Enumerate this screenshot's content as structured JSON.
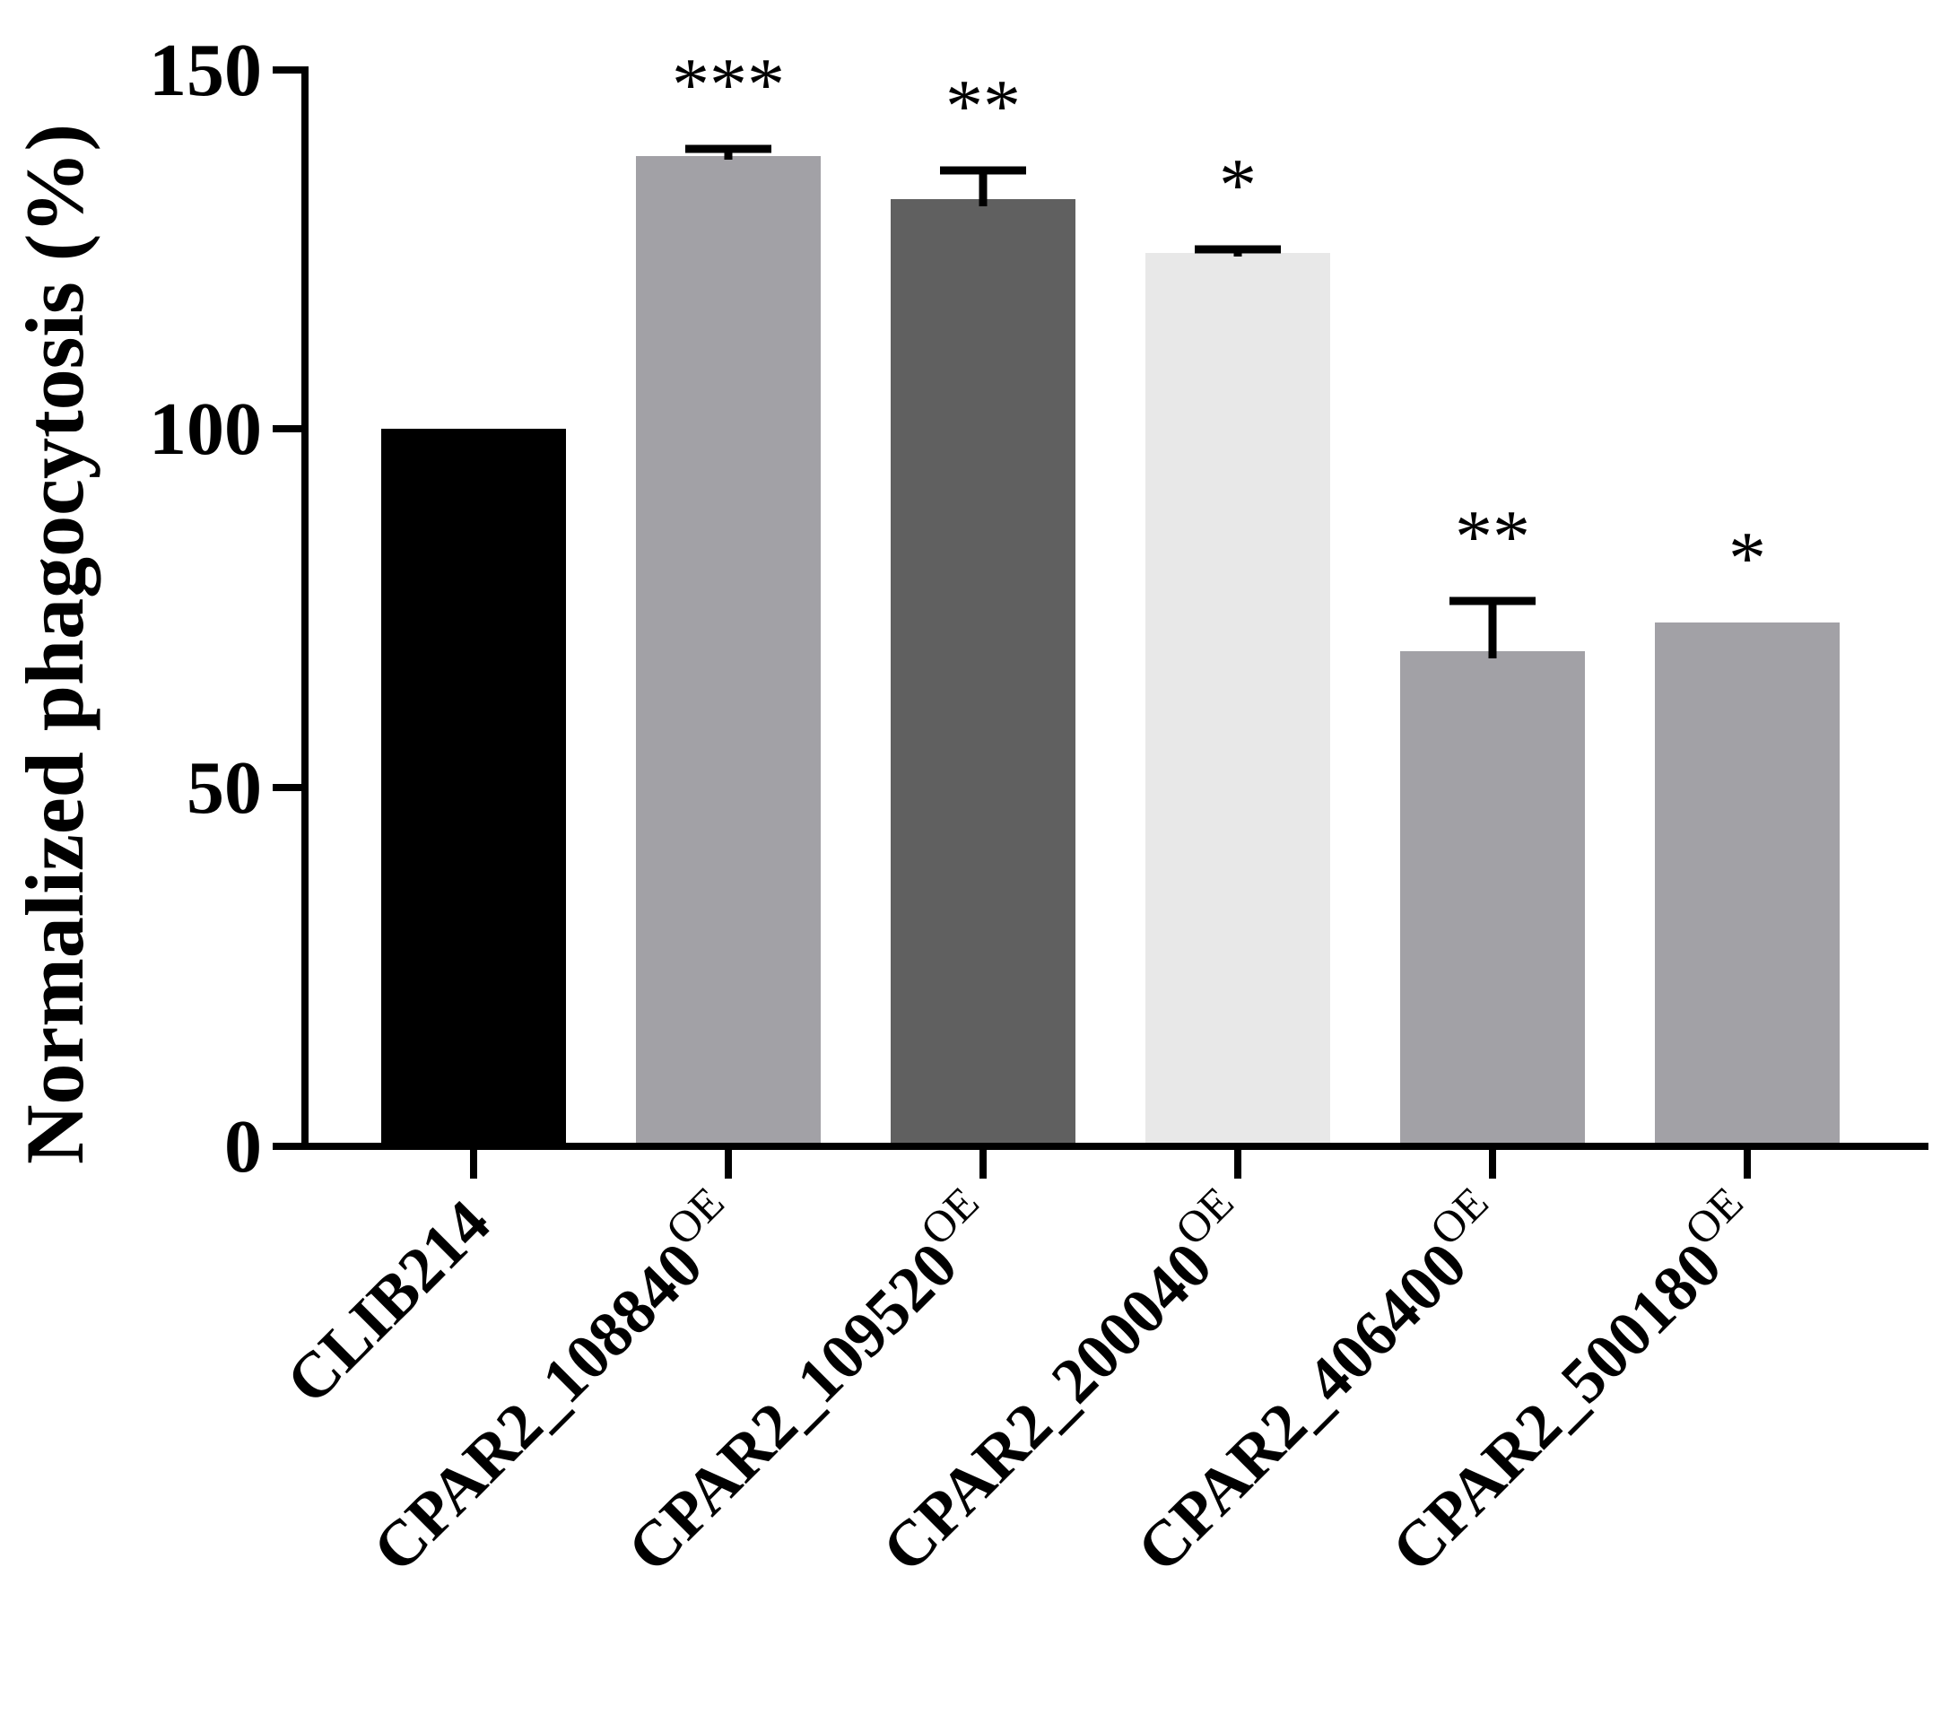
{
  "chart_data": {
    "type": "bar",
    "title": "",
    "xlabel": "",
    "ylabel": "Normalized phagocytosis (%)",
    "ylim": [
      0,
      150
    ],
    "yticks": [
      0,
      50,
      100,
      150
    ],
    "grid": false,
    "legend": "none",
    "categories": [
      {
        "base": "CLIB214",
        "sup": ""
      },
      {
        "base": "CPAR2_108840",
        "sup": "OE"
      },
      {
        "base": "CPAR2_109520",
        "sup": "OE"
      },
      {
        "base": "CPAR2_200040",
        "sup": "OE"
      },
      {
        "base": "CPAR2_406400",
        "sup": "OE"
      },
      {
        "base": "CPAR2_500180",
        "sup": "OE"
      }
    ],
    "values": [
      100,
      138,
      132,
      124.5,
      69,
      73
    ],
    "error_upper": [
      0,
      139,
      136,
      125,
      76,
      73
    ],
    "error_lower": [
      100,
      137.5,
      131,
      124,
      68,
      73
    ],
    "significance": [
      "",
      "***",
      "**",
      "*",
      "**",
      "*"
    ],
    "colors": [
      "#000000",
      "#a2a1a6",
      "#606060",
      "#e8e8e8",
      "#a2a1a6",
      "#a2a1a6"
    ]
  }
}
